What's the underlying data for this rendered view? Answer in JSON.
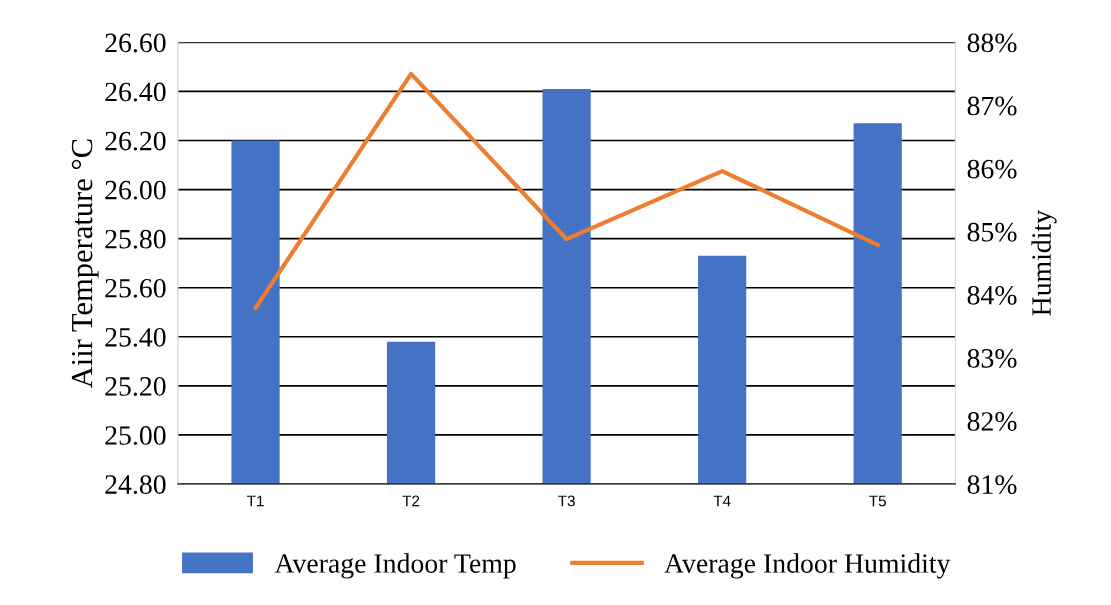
{
  "chart_data": {
    "type": "bar",
    "categories": [
      "T1",
      "T2",
      "T3",
      "T4",
      "T5"
    ],
    "ylabel": "Aiir Temperature °C",
    "y2label": "Humidity",
    "series": [
      {
        "name": "Average Indoor Temp",
        "color": "#4472c4",
        "values": [
          26.2,
          25.38,
          26.41,
          25.73,
          26.27
        ]
      },
      {
        "name": "Average Indoor Humidity",
        "type": "line",
        "axis": "y2",
        "color": "#ed7d31",
        "values": [
          83.79,
          87.5,
          84.88,
          85.96,
          84.79
        ]
      }
    ],
    "ylim": [
      24.8,
      26.6
    ],
    "yticks": [
      {
        "value": 24.8,
        "label": "24.80"
      },
      {
        "value": 25.0,
        "label": "25.00"
      },
      {
        "value": 25.2,
        "label": "25.20"
      },
      {
        "value": 25.4,
        "label": "25.40"
      },
      {
        "value": 25.6,
        "label": "25.60"
      },
      {
        "value": 25.8,
        "label": "25.80"
      },
      {
        "value": 26.0,
        "label": "26.00"
      },
      {
        "value": 26.2,
        "label": "26.20"
      },
      {
        "value": 26.4,
        "label": "26.40"
      },
      {
        "value": 26.6,
        "label": "26.60"
      }
    ],
    "y2lim": [
      81,
      88
    ],
    "y2ticks": [
      {
        "value": 81,
        "label": "81%"
      },
      {
        "value": 82,
        "label": "82%"
      },
      {
        "value": 83,
        "label": "83%"
      },
      {
        "value": 84,
        "label": "84%"
      },
      {
        "value": 85,
        "label": "85%"
      },
      {
        "value": 86,
        "label": "86%"
      },
      {
        "value": 87,
        "label": "87%"
      },
      {
        "value": 88,
        "label": "88%"
      }
    ],
    "grid": "y",
    "legend": "bottom"
  }
}
